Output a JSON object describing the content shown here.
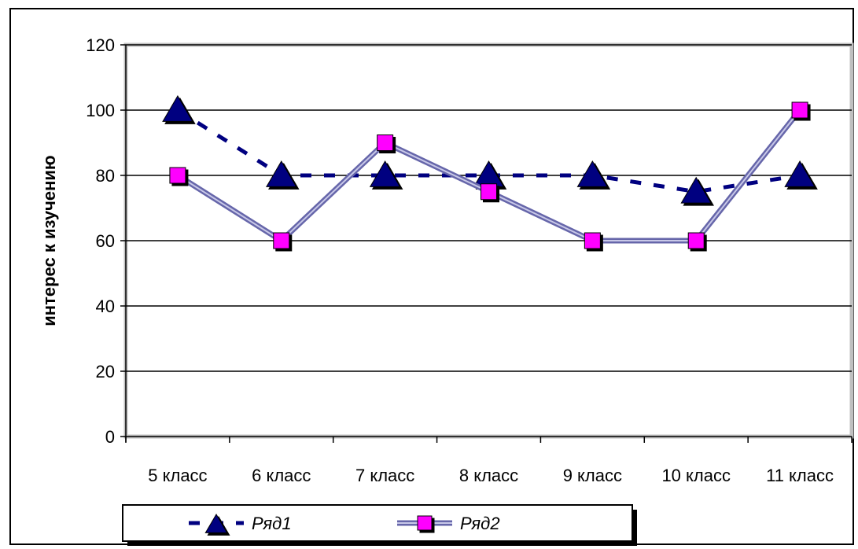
{
  "chart_data": {
    "type": "line",
    "categories": [
      "5 класс",
      "6 класс",
      "7 класс",
      "8 класс",
      "9 класс",
      "10 класс",
      "11 класс"
    ],
    "series": [
      {
        "name": "Ряд1",
        "values": [
          100,
          80,
          80,
          80,
          80,
          75,
          80
        ],
        "color": "#000080",
        "marker": "triangle",
        "line": "dashed"
      },
      {
        "name": "Ряд2",
        "values": [
          80,
          60,
          90,
          75,
          60,
          60,
          100
        ],
        "color": "#FF00FF",
        "line_color": "#6666AA",
        "marker": "square",
        "line": "double"
      }
    ],
    "ylabel": "интерес к изучению",
    "xlabel": "",
    "ylim": [
      0,
      120
    ],
    "yticks": [
      0,
      20,
      40,
      60,
      80,
      100,
      120
    ],
    "grid": true,
    "plot_background": "#ffffff",
    "plot_border_color": "#C0C0C0",
    "legend_position": "bottom-left"
  }
}
